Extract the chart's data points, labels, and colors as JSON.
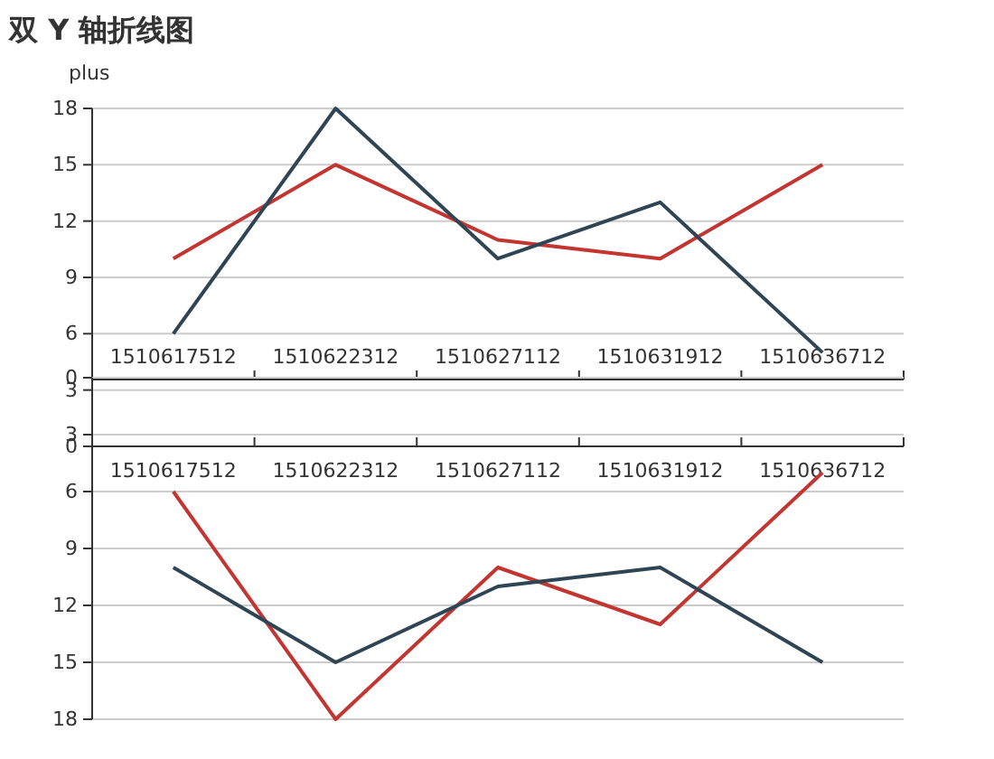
{
  "chart_data": [
    {
      "type": "line",
      "title": "双 Y 轴折线图",
      "ylabel": "plus",
      "categories": [
        "1510617512",
        "1510622312",
        "1510627112",
        "1510631912",
        "1510636712"
      ],
      "ylim": [
        0,
        18
      ],
      "yticks": [
        0,
        3,
        6,
        9,
        12,
        15,
        18
      ],
      "grid": "y",
      "marker": "none",
      "line_style": "solid",
      "series": [
        {
          "color": "#c23531",
          "values": [
            10,
            15,
            11,
            10,
            15
          ]
        },
        {
          "color": "#2f4554",
          "values": [
            6,
            18,
            10,
            13,
            5
          ]
        }
      ]
    },
    {
      "type": "line",
      "categories": [
        "1510617512",
        "1510622312",
        "1510627112",
        "1510631912",
        "1510636712"
      ],
      "ylim": [
        18,
        0
      ],
      "yticks": [
        0,
        3,
        6,
        9,
        12,
        15,
        18
      ],
      "grid": "y",
      "marker": "none",
      "line_style": "solid",
      "series": [
        {
          "color": "#c23531",
          "values": [
            6,
            18,
            10,
            13,
            5
          ]
        },
        {
          "color": "#2f4554",
          "values": [
            10,
            15,
            11,
            10,
            15
          ]
        }
      ]
    }
  ]
}
